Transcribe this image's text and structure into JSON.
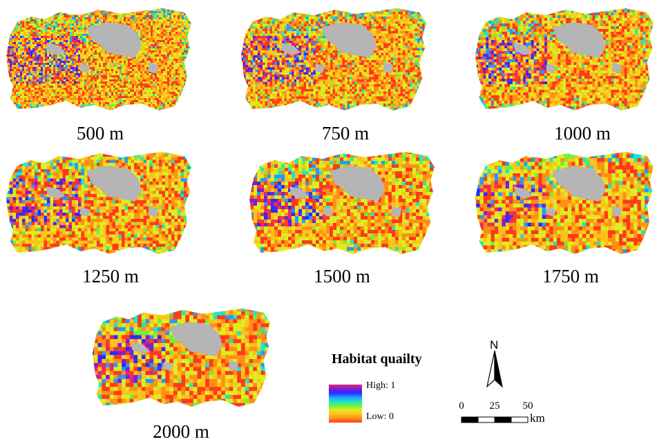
{
  "panels": [
    {
      "label": "500 m"
    },
    {
      "label": "750 m"
    },
    {
      "label": "1000 m"
    },
    {
      "label": "1250 m"
    },
    {
      "label": "1500 m"
    },
    {
      "label": "1750 m"
    },
    {
      "label": "2000 m"
    }
  ],
  "legend": {
    "title": "Habitat quailty",
    "high_label": "High: 1",
    "low_label": "Low: 0",
    "colors": [
      "#e32a6c",
      "#7b1fd6",
      "#2b2bff",
      "#1f9cff",
      "#19e6d0",
      "#6ef03c",
      "#d9ef22",
      "#ffc21a",
      "#ff8f17",
      "#ff3a1a"
    ]
  },
  "nodata_color": "#b5b5b5",
  "north_arrow": {
    "label": "N"
  },
  "scale_bar": {
    "ticks": [
      "0",
      "25",
      "50"
    ],
    "unit": "km"
  }
}
